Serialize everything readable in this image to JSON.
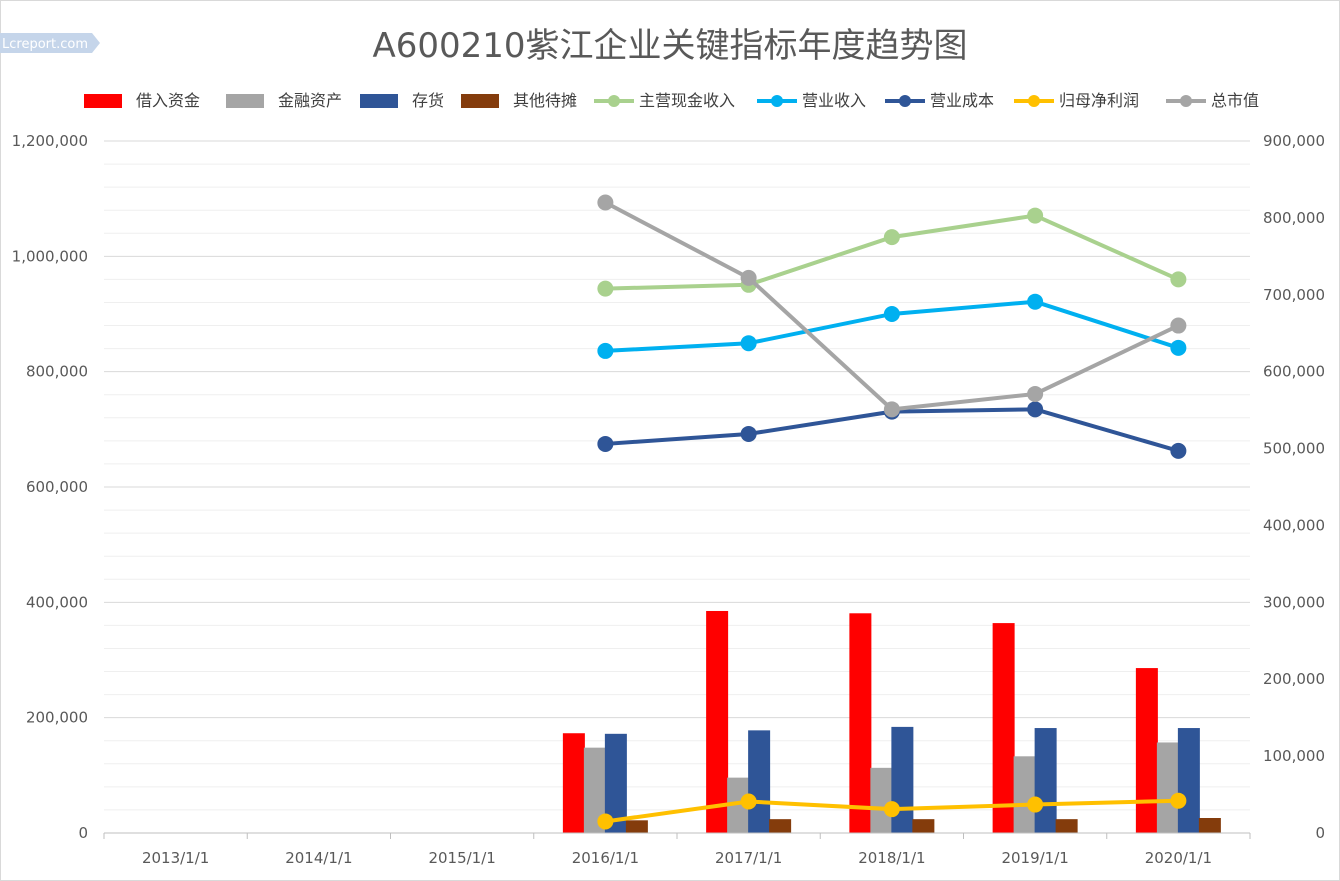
{
  "watermark": "Lcreport.com",
  "chart_data": {
    "type": "bar",
    "title": "A600210紫江企业关键指标年度趋势图",
    "categories": [
      "2013/1/1",
      "2014/1/1",
      "2015/1/1",
      "2016/1/1",
      "2017/1/1",
      "2018/1/1",
      "2019/1/1",
      "2020/1/1"
    ],
    "y_left": {
      "ylim": [
        0,
        1200000
      ],
      "ticks": [
        "0",
        "200,000",
        "400,000",
        "600,000",
        "800,000",
        "1,000,000",
        "1,200,000"
      ]
    },
    "y_right": {
      "ylim": [
        0,
        900000
      ],
      "ticks": [
        "0",
        "100,000",
        "200,000",
        "300,000",
        "400,000",
        "500,000",
        "600,000",
        "700,000",
        "800,000",
        "900,000"
      ]
    },
    "grid": true,
    "legend_position": "top",
    "bar_series": [
      {
        "name": "借入资金",
        "color": "#ff0000",
        "values": [
          null,
          null,
          null,
          173000,
          385000,
          381000,
          364000,
          286000
        ]
      },
      {
        "name": "金融资产",
        "color": "#a5a5a5",
        "values": [
          null,
          null,
          null,
          148000,
          96000,
          113000,
          133000,
          157000
        ]
      },
      {
        "name": "存货",
        "color": "#2f5597",
        "values": [
          null,
          null,
          null,
          172000,
          178000,
          184000,
          182000,
          182000
        ]
      },
      {
        "name": "其他待摊",
        "color": "#843c0c",
        "values": [
          null,
          null,
          null,
          22000,
          24000,
          24000,
          24000,
          26000
        ]
      }
    ],
    "line_series": [
      {
        "name": "主营现金收入",
        "color": "#a9d18e",
        "axis": "right",
        "values": [
          null,
          null,
          null,
          708000,
          713000,
          775000,
          803000,
          720000
        ]
      },
      {
        "name": "营业收入",
        "color": "#00b0f0",
        "axis": "right",
        "values": [
          null,
          null,
          null,
          627000,
          637000,
          675000,
          691000,
          631000
        ]
      },
      {
        "name": "营业成本",
        "color": "#2f5597",
        "axis": "right",
        "values": [
          null,
          null,
          null,
          506000,
          519000,
          548000,
          551000,
          497000
        ]
      },
      {
        "name": "归母净利润",
        "color": "#ffc000",
        "axis": "right",
        "values": [
          null,
          null,
          null,
          15000,
          41000,
          31000,
          37000,
          42000
        ]
      },
      {
        "name": "总市值",
        "color": "#a5a5a5",
        "axis": "right",
        "values": [
          null,
          null,
          null,
          820000,
          722000,
          551000,
          571000,
          660000
        ]
      }
    ]
  }
}
